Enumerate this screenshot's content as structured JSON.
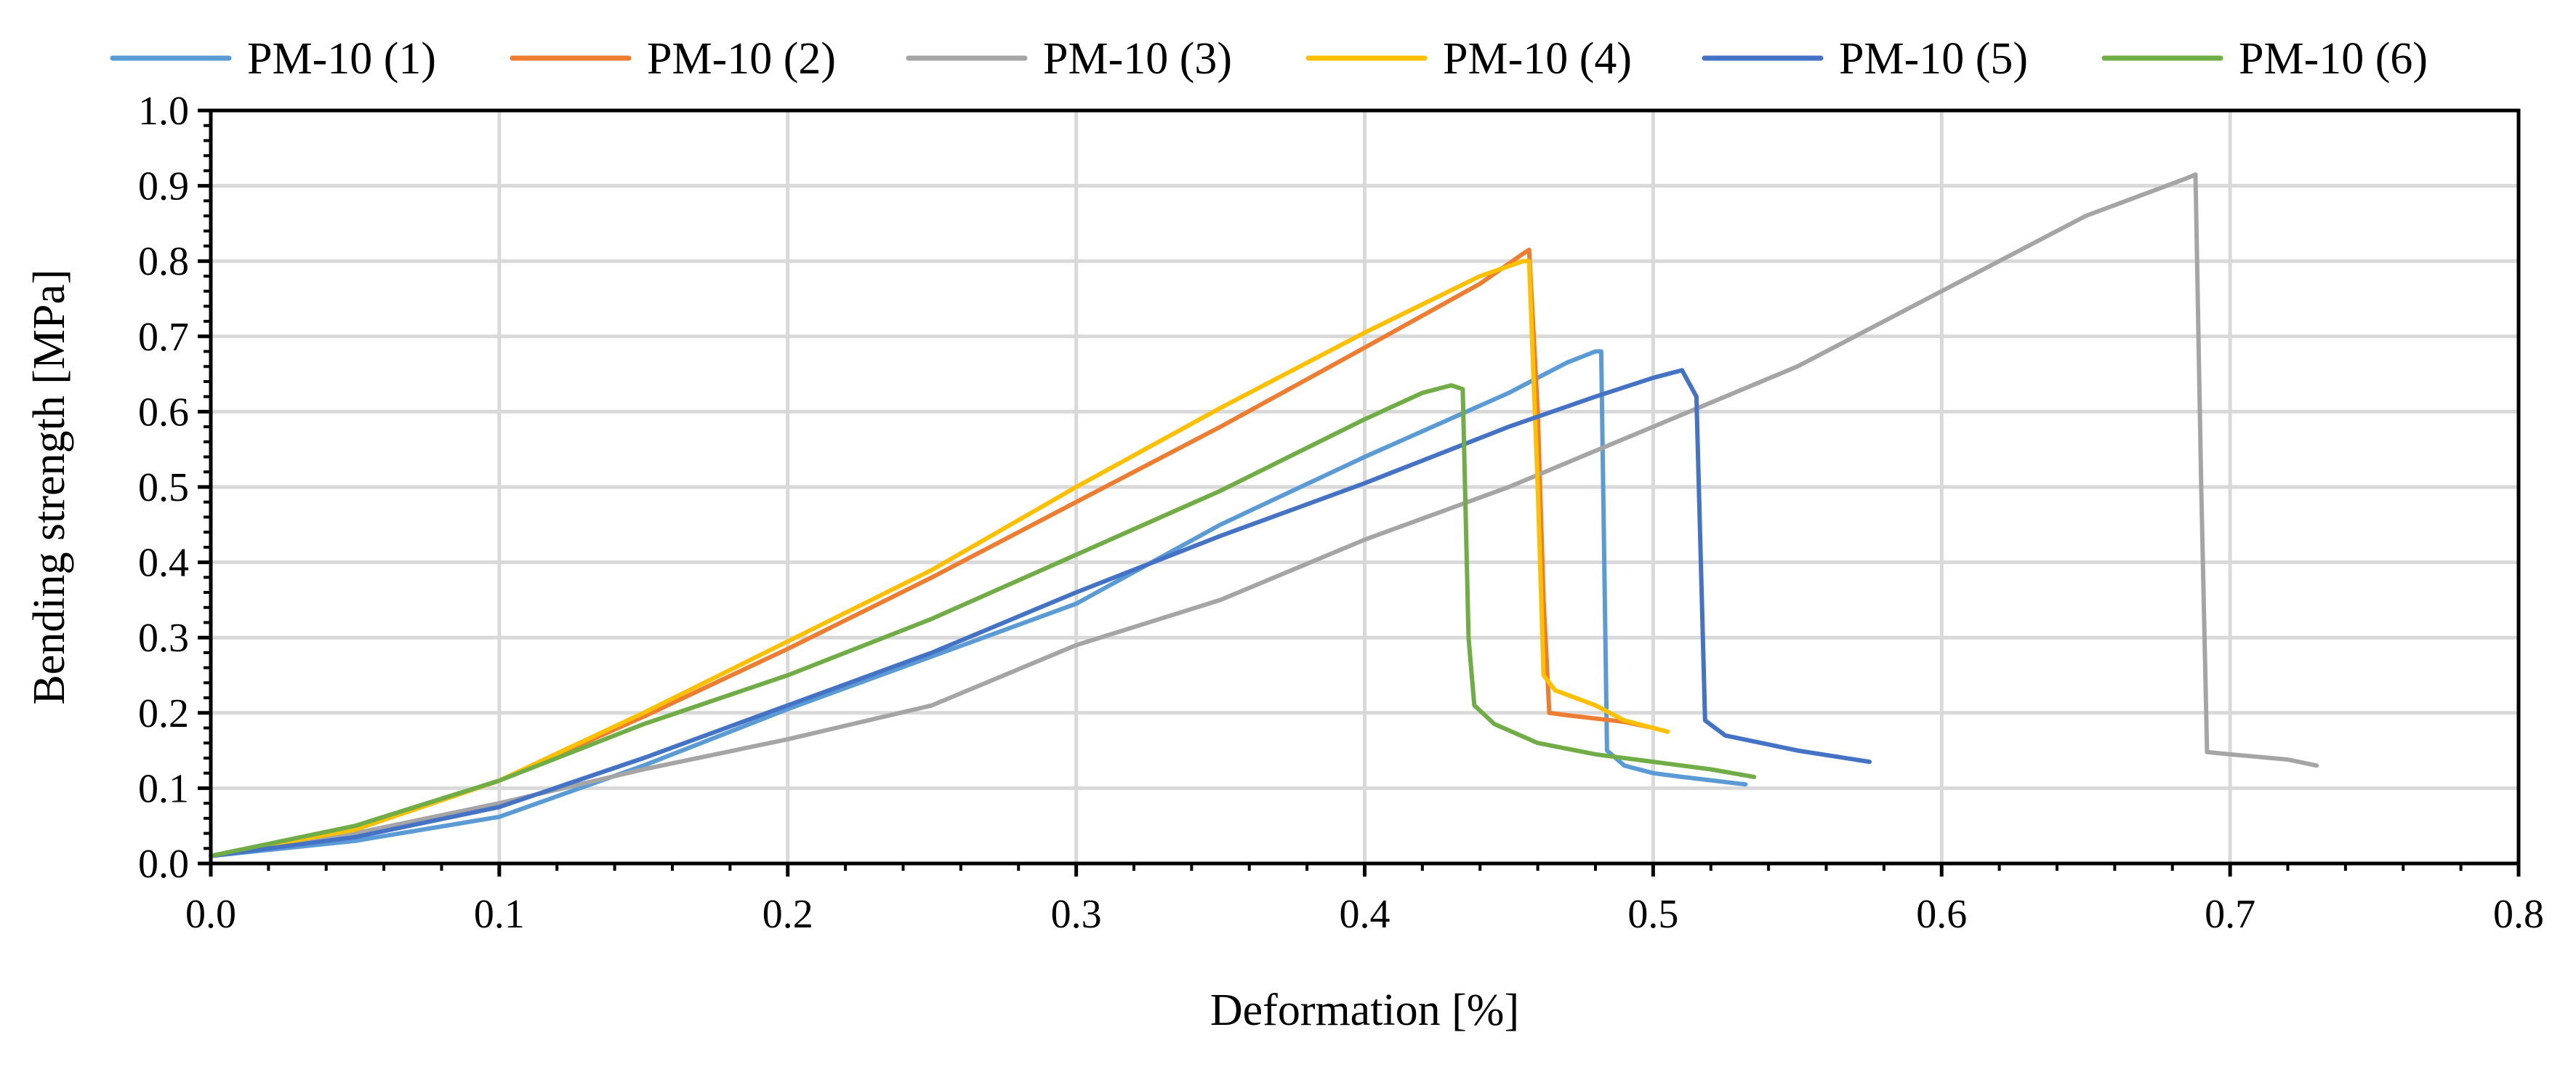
{
  "chart_data": {
    "type": "line",
    "title": "",
    "xlabel": "Deformation [%]",
    "ylabel": "Bending strength [MPa]",
    "xlim": [
      0,
      0.8
    ],
    "ylim": [
      0,
      1.0
    ],
    "xticks": [
      "0.0",
      "0.1",
      "0.2",
      "0.3",
      "0.4",
      "0.5",
      "0.6",
      "0.7",
      "0.8"
    ],
    "yticks": [
      "0.0",
      "0.1",
      "0.2",
      "0.3",
      "0.4",
      "0.5",
      "0.6",
      "0.7",
      "0.8",
      "0.9",
      "1.0"
    ],
    "grid": true,
    "legend_position": "top",
    "series": [
      {
        "name": "PM-10 (1)",
        "color": "#5B9BD5",
        "points": [
          [
            0,
            0.01
          ],
          [
            0.05,
            0.03
          ],
          [
            0.1,
            0.062
          ],
          [
            0.15,
            0.13
          ],
          [
            0.2,
            0.205
          ],
          [
            0.25,
            0.275
          ],
          [
            0.3,
            0.345
          ],
          [
            0.35,
            0.45
          ],
          [
            0.4,
            0.54
          ],
          [
            0.45,
            0.625
          ],
          [
            0.47,
            0.665
          ],
          [
            0.48,
            0.68
          ],
          [
            0.482,
            0.68
          ],
          [
            0.484,
            0.15
          ],
          [
            0.49,
            0.13
          ],
          [
            0.5,
            0.12
          ],
          [
            0.51,
            0.115
          ],
          [
            0.532,
            0.105
          ]
        ]
      },
      {
        "name": "PM-10 (2)",
        "color": "#ED7D31",
        "points": [
          [
            0,
            0.01
          ],
          [
            0.05,
            0.045
          ],
          [
            0.1,
            0.11
          ],
          [
            0.15,
            0.195
          ],
          [
            0.2,
            0.285
          ],
          [
            0.25,
            0.38
          ],
          [
            0.3,
            0.48
          ],
          [
            0.35,
            0.58
          ],
          [
            0.4,
            0.685
          ],
          [
            0.44,
            0.77
          ],
          [
            0.455,
            0.81
          ],
          [
            0.457,
            0.815
          ],
          [
            0.46,
            0.6
          ],
          [
            0.462,
            0.35
          ],
          [
            0.464,
            0.2
          ],
          [
            0.47,
            0.197
          ],
          [
            0.49,
            0.188
          ],
          [
            0.5,
            0.18
          ]
        ]
      },
      {
        "name": "PM-10 (3)",
        "color": "#A5A5A5",
        "points": [
          [
            0,
            0.01
          ],
          [
            0.05,
            0.04
          ],
          [
            0.1,
            0.08
          ],
          [
            0.15,
            0.125
          ],
          [
            0.2,
            0.165
          ],
          [
            0.25,
            0.21
          ],
          [
            0.3,
            0.29
          ],
          [
            0.35,
            0.35
          ],
          [
            0.4,
            0.43
          ],
          [
            0.45,
            0.5
          ],
          [
            0.5,
            0.58
          ],
          [
            0.55,
            0.66
          ],
          [
            0.6,
            0.76
          ],
          [
            0.65,
            0.86
          ],
          [
            0.685,
            0.91
          ],
          [
            0.688,
            0.915
          ],
          [
            0.69,
            0.5
          ],
          [
            0.692,
            0.148
          ],
          [
            0.7,
            0.145
          ],
          [
            0.72,
            0.138
          ],
          [
            0.73,
            0.13
          ]
        ]
      },
      {
        "name": "PM-10 (4)",
        "color": "#FFC000",
        "points": [
          [
            0,
            0.01
          ],
          [
            0.05,
            0.045
          ],
          [
            0.1,
            0.11
          ],
          [
            0.15,
            0.2
          ],
          [
            0.2,
            0.295
          ],
          [
            0.25,
            0.39
          ],
          [
            0.3,
            0.5
          ],
          [
            0.35,
            0.605
          ],
          [
            0.4,
            0.705
          ],
          [
            0.44,
            0.78
          ],
          [
            0.455,
            0.8
          ],
          [
            0.457,
            0.8
          ],
          [
            0.46,
            0.5
          ],
          [
            0.462,
            0.25
          ],
          [
            0.466,
            0.23
          ],
          [
            0.48,
            0.21
          ],
          [
            0.49,
            0.19
          ],
          [
            0.505,
            0.175
          ]
        ]
      },
      {
        "name": "PM-10 (5)",
        "color": "#4472C4",
        "points": [
          [
            0,
            0.01
          ],
          [
            0.05,
            0.035
          ],
          [
            0.1,
            0.075
          ],
          [
            0.15,
            0.14
          ],
          [
            0.2,
            0.21
          ],
          [
            0.25,
            0.28
          ],
          [
            0.3,
            0.36
          ],
          [
            0.35,
            0.435
          ],
          [
            0.4,
            0.505
          ],
          [
            0.45,
            0.58
          ],
          [
            0.48,
            0.62
          ],
          [
            0.5,
            0.645
          ],
          [
            0.51,
            0.655
          ],
          [
            0.515,
            0.62
          ],
          [
            0.518,
            0.19
          ],
          [
            0.525,
            0.17
          ],
          [
            0.55,
            0.15
          ],
          [
            0.575,
            0.135
          ]
        ]
      },
      {
        "name": "PM-10 (6)",
        "color": "#70AD47",
        "points": [
          [
            0,
            0.01
          ],
          [
            0.05,
            0.05
          ],
          [
            0.1,
            0.11
          ],
          [
            0.15,
            0.185
          ],
          [
            0.2,
            0.25
          ],
          [
            0.25,
            0.325
          ],
          [
            0.3,
            0.41
          ],
          [
            0.35,
            0.495
          ],
          [
            0.4,
            0.59
          ],
          [
            0.42,
            0.625
          ],
          [
            0.43,
            0.635
          ],
          [
            0.434,
            0.63
          ],
          [
            0.436,
            0.3
          ],
          [
            0.438,
            0.21
          ],
          [
            0.445,
            0.185
          ],
          [
            0.46,
            0.16
          ],
          [
            0.48,
            0.145
          ],
          [
            0.5,
            0.135
          ],
          [
            0.52,
            0.125
          ],
          [
            0.535,
            0.115
          ]
        ]
      }
    ]
  }
}
